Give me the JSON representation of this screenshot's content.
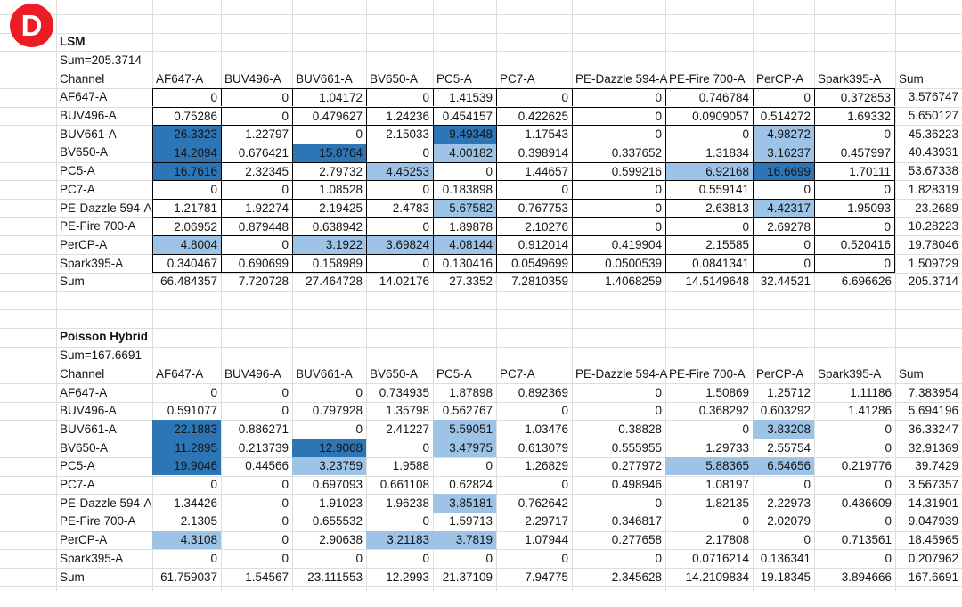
{
  "panel_label": {
    "text": "D"
  },
  "colors": {
    "badge_red": "#ec1c24",
    "highlight_light": "#9dc3e6",
    "highlight_dark": "#2e75b6",
    "grid_line": "#dedede",
    "matrix_border": "#000000"
  },
  "highlight_rules": {
    "light_min": 3,
    "dark_min": 8
  },
  "header_row": [
    "Channel",
    "AF647-A",
    "BUV496-A",
    "BUV661-A",
    "BV650-A",
    "PC5-A",
    "PC7-A",
    "PE-Dazzle 594-A",
    "PE-Fire 700-A",
    "PerCP-A",
    "Spark395-A",
    "Sum"
  ],
  "tables": [
    {
      "title": "LSM",
      "subtitle": "Sum=205.3714",
      "matrix_bordered": true,
      "rows": [
        {
          "label": "AF647-A",
          "values": [
            "0",
            "0",
            "1.04172",
            "0",
            "1.41539",
            "0",
            "0",
            "0.746784",
            "0",
            "0.372853"
          ],
          "sum": "3.576747"
        },
        {
          "label": "BUV496-A",
          "values": [
            "0.75286",
            "0",
            "0.479627",
            "1.24236",
            "0.454157",
            "0.422625",
            "0",
            "0.0909057",
            "0.514272",
            "1.69332"
          ],
          "sum": "5.650127"
        },
        {
          "label": "BUV661-A",
          "values": [
            "26.3323",
            "1.22797",
            "0",
            "2.15033",
            "9.49348",
            "1.17543",
            "0",
            "0",
            "4.98272",
            "0"
          ],
          "sum": "45.36223"
        },
        {
          "label": "BV650-A",
          "values": [
            "14.2094",
            "0.676421",
            "15.8764",
            "0",
            "4.00182",
            "0.398914",
            "0.337652",
            "1.31834",
            "3.16237",
            "0.457997"
          ],
          "sum": "40.43931"
        },
        {
          "label": "PC5-A",
          "values": [
            "16.7616",
            "2.32345",
            "2.79732",
            "4.45253",
            "0",
            "1.44657",
            "0.599216",
            "6.92168",
            "16.6699",
            "1.70111"
          ],
          "sum": "53.67338"
        },
        {
          "label": "PC7-A",
          "values": [
            "0",
            "0",
            "1.08528",
            "0",
            "0.183898",
            "0",
            "0",
            "0.559141",
            "0",
            "0"
          ],
          "sum": "1.828319"
        },
        {
          "label": "PE-Dazzle 594-A",
          "values": [
            "1.21781",
            "1.92274",
            "2.19425",
            "2.4783",
            "5.67582",
            "0.767753",
            "0",
            "2.63813",
            "4.42317",
            "1.95093"
          ],
          "sum": "23.2689"
        },
        {
          "label": "PE-Fire 700-A",
          "values": [
            "2.06952",
            "0.879448",
            "0.638942",
            "0",
            "1.89878",
            "2.10276",
            "0",
            "0",
            "2.69278",
            "0"
          ],
          "sum": "10.28223"
        },
        {
          "label": "PerCP-A",
          "values": [
            "4.8004",
            "0",
            "3.1922",
            "3.69824",
            "4.08144",
            "0.912014",
            "0.419904",
            "2.15585",
            "0",
            "0.520416"
          ],
          "sum": "19.78046"
        },
        {
          "label": "Spark395-A",
          "values": [
            "0.340467",
            "0.690699",
            "0.158989",
            "0",
            "0.130416",
            "0.0549699",
            "0.0500539",
            "0.0841341",
            "0",
            "0"
          ],
          "sum": "1.509729"
        }
      ],
      "sum_row": {
        "label": "Sum",
        "values": [
          "66.484357",
          "7.720728",
          "27.464728",
          "14.02176",
          "27.3352",
          "7.2810359",
          "1.4068259",
          "14.5149648",
          "32.44521",
          "6.696626"
        ],
        "total": "205.3714"
      }
    },
    {
      "title": "Poisson Hybrid",
      "subtitle": "Sum=167.6691",
      "matrix_bordered": false,
      "rows": [
        {
          "label": "AF647-A",
          "values": [
            "0",
            "0",
            "0",
            "0.734935",
            "1.87898",
            "0.892369",
            "0",
            "1.50869",
            "1.25712",
            "1.11186"
          ],
          "sum": "7.383954"
        },
        {
          "label": "BUV496-A",
          "values": [
            "0.591077",
            "0",
            "0.797928",
            "1.35798",
            "0.562767",
            "0",
            "0",
            "0.368292",
            "0.603292",
            "1.41286"
          ],
          "sum": "5.694196"
        },
        {
          "label": "BUV661-A",
          "values": [
            "22.1883",
            "0.886271",
            "0",
            "2.41227",
            "5.59051",
            "1.03476",
            "0.38828",
            "0",
            "3.83208",
            "0"
          ],
          "sum": "36.33247"
        },
        {
          "label": "BV650-A",
          "values": [
            "11.2895",
            "0.213739",
            "12.9068",
            "0",
            "3.47975",
            "0.613079",
            "0.555955",
            "1.29733",
            "2.55754",
            "0"
          ],
          "sum": "32.91369"
        },
        {
          "label": "PC5-A",
          "values": [
            "19.9046",
            "0.44566",
            "3.23759",
            "1.9588",
            "0",
            "1.26829",
            "0.277972",
            "5.88365",
            "6.54656",
            "0.219776"
          ],
          "sum": "39.7429"
        },
        {
          "label": "PC7-A",
          "values": [
            "0",
            "0",
            "0.697093",
            "0.661108",
            "0.62824",
            "0",
            "0.498946",
            "1.08197",
            "0",
            "0"
          ],
          "sum": "3.567357"
        },
        {
          "label": "PE-Dazzle 594-A",
          "values": [
            "1.34426",
            "0",
            "1.91023",
            "1.96238",
            "3.85181",
            "0.762642",
            "0",
            "1.82135",
            "2.22973",
            "0.436609"
          ],
          "sum": "14.31901"
        },
        {
          "label": "PE-Fire 700-A",
          "values": [
            "2.1305",
            "0",
            "0.655532",
            "0",
            "1.59713",
            "2.29717",
            "0.346817",
            "0",
            "2.02079",
            "0"
          ],
          "sum": "9.047939"
        },
        {
          "label": "PerCP-A",
          "values": [
            "4.3108",
            "0",
            "2.90638",
            "3.21183",
            "3.7819",
            "1.07944",
            "0.277658",
            "2.17808",
            "0",
            "0.713561"
          ],
          "sum": "18.45965"
        },
        {
          "label": "Spark395-A",
          "values": [
            "0",
            "0",
            "0",
            "0",
            "0",
            "0",
            "0",
            "0.0716214",
            "0.136341",
            "0"
          ],
          "sum": "0.207962"
        }
      ],
      "sum_row": {
        "label": "Sum",
        "values": [
          "61.759037",
          "1.54567",
          "23.111553",
          "12.2993",
          "21.37109",
          "7.94775",
          "2.345628",
          "14.2109834",
          "19.18345",
          "3.894666"
        ],
        "total": "167.6691"
      }
    }
  ]
}
